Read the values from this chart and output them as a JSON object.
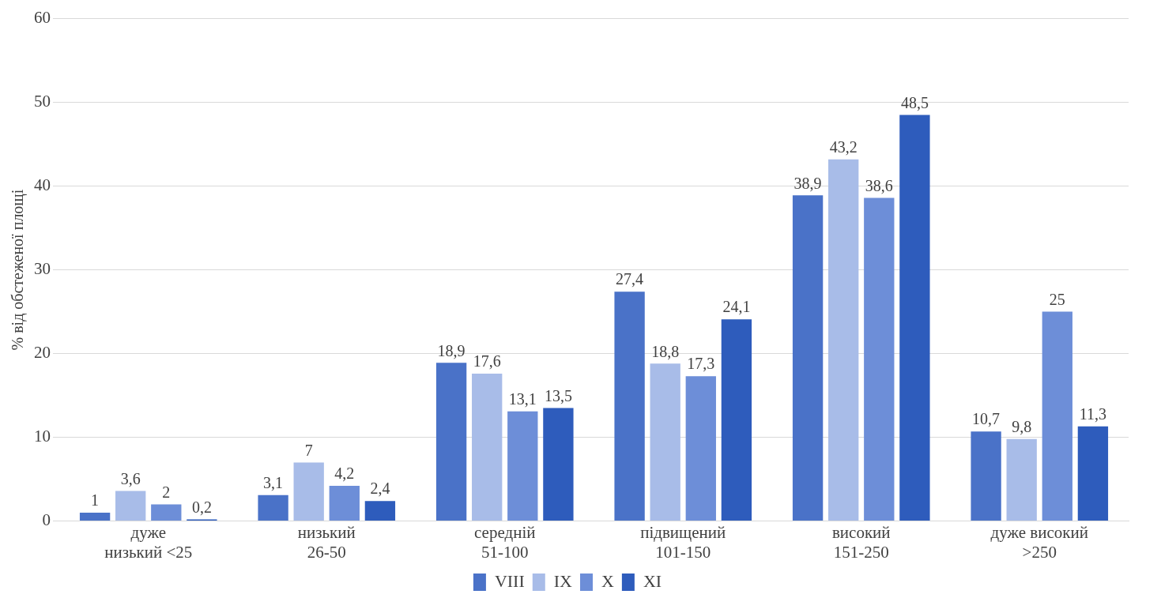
{
  "chart_data": {
    "type": "bar",
    "ylabel": "% від обстеженої площі",
    "categories": [
      "дуже низький <25",
      "низький 26-50",
      "середній 51-100",
      "підвищений 101-150",
      "високий 151-250",
      "дуже високий >250"
    ],
    "series": [
      {
        "name": "VIII",
        "color": "#4a72c8",
        "values": [
          1,
          3.1,
          18.9,
          27.4,
          38.9,
          10.7
        ],
        "value_labels": [
          "1",
          "3,1",
          "18,9",
          "27,4",
          "38,9",
          "10,7"
        ]
      },
      {
        "name": "IX",
        "color": "#a8bce8",
        "values": [
          3.6,
          7,
          17.6,
          18.8,
          43.2,
          9.8
        ],
        "value_labels": [
          "3,6",
          "7",
          "17,6",
          "18,8",
          "43,2",
          "9,8"
        ]
      },
      {
        "name": "X",
        "color": "#6d8ed8",
        "values": [
          2,
          4.2,
          13.1,
          17.3,
          38.6,
          25
        ],
        "value_labels": [
          "2",
          "4,2",
          "13,1",
          "17,3",
          "38,6",
          "25"
        ]
      },
      {
        "name": "XI",
        "color": "#2e5cbc",
        "values": [
          0.2,
          2.4,
          13.5,
          24.1,
          48.5,
          11.3
        ],
        "value_labels": [
          "0,2",
          "2,4",
          "13,5",
          "24,1",
          "48,5",
          "11,3"
        ]
      }
    ],
    "ylim": [
      0,
      60
    ],
    "yticks": [
      0,
      10,
      20,
      30,
      40,
      50,
      60
    ],
    "grid": "y",
    "legend": "bottom"
  }
}
